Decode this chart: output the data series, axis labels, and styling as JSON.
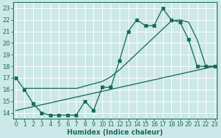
{
  "line1_x": [
    0,
    1,
    2,
    3,
    4,
    5,
    6,
    7,
    8,
    9,
    10,
    11,
    12,
    13,
    14,
    15,
    16,
    17,
    18,
    19,
    20,
    21,
    22,
    23
  ],
  "line1_y": [
    17,
    16,
    14.8,
    14,
    13.8,
    13.8,
    13.8,
    13.8,
    15.0,
    14.2,
    16.2,
    16.2,
    18.5,
    21.0,
    22.0,
    21.5,
    21.5,
    23.0,
    22.0,
    21.8,
    20.3,
    18.0,
    18.0,
    18.0
  ],
  "line2_x": [
    0,
    23
  ],
  "line2_y": [
    14.2,
    18.0
  ],
  "line3_x": [
    1,
    2,
    3,
    4,
    5,
    6,
    7,
    8,
    9,
    10,
    11,
    12,
    13,
    14,
    15,
    16,
    17,
    18,
    19,
    20,
    21,
    22,
    23
  ],
  "line3_y": [
    16.1,
    16.1,
    16.1,
    16.1,
    16.1,
    16.1,
    16.1,
    16.3,
    16.5,
    16.7,
    17.1,
    17.7,
    18.4,
    19.1,
    19.8,
    20.5,
    21.2,
    21.9,
    22.0,
    21.8,
    20.3,
    18.0,
    18.0
  ],
  "line_color": "#1a6b5a",
  "bg_color": "#cce8e8",
  "grid_color": "#ffffff",
  "xlabel": "Humidex (Indice chaleur)",
  "ylabel_ticks": [
    14,
    15,
    16,
    17,
    18,
    19,
    20,
    21,
    22,
    23
  ],
  "xlabel_ticks": [
    0,
    1,
    2,
    3,
    4,
    5,
    6,
    7,
    8,
    9,
    10,
    11,
    12,
    13,
    14,
    15,
    16,
    17,
    18,
    19,
    20,
    21,
    22,
    23
  ],
  "xlim": [
    -0.3,
    23.3
  ],
  "ylim": [
    13.5,
    23.5
  ],
  "marker_size": 2.5,
  "line_width": 1.0,
  "font_size": 6.5
}
